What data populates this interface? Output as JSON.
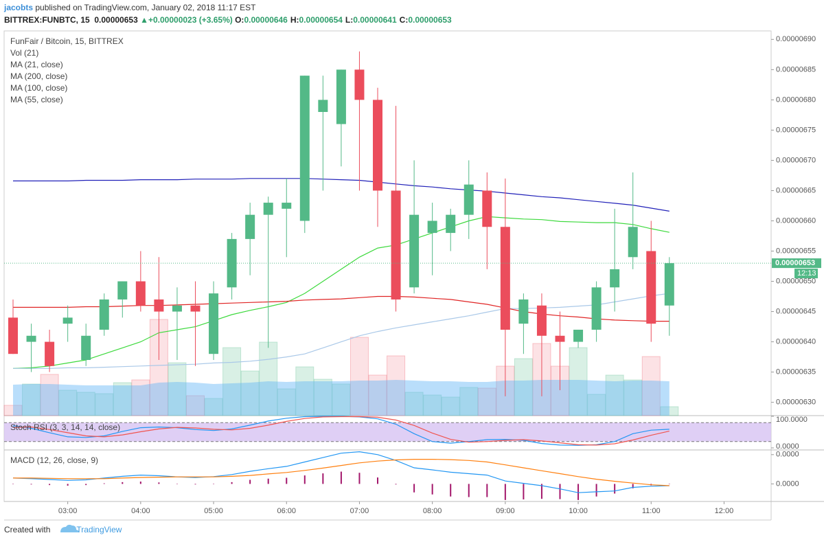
{
  "header": {
    "author": "jacobts",
    "published": "published on TradingView.com, January 02, 2018 11:17 EST",
    "symbol": "BITTREX:FUNBTC, 15",
    "last": "0.00000653",
    "arrow": "▲",
    "change": "+0.00000023 (+3.65%)",
    "ohlc": [
      {
        "key": "O:",
        "value": "0.00000646"
      },
      {
        "key": "H:",
        "value": "0.00000654"
      },
      {
        "key": "L:",
        "value": "0.00000641"
      },
      {
        "key": "C:",
        "value": "0.00000653"
      }
    ]
  },
  "chart_data": {
    "type": "candlestick",
    "title": "FunFair / Bitcoin, 15, BITTREX",
    "categories": [
      null,
      null,
      null,
      "03:00",
      null,
      null,
      null,
      "04:00",
      null,
      null,
      null,
      "05:00",
      null,
      null,
      null,
      "06:00",
      null,
      null,
      null,
      "07:00",
      null,
      null,
      null,
      "08:00",
      null,
      null,
      null,
      "09:00",
      null,
      null,
      null,
      "10:00",
      null,
      null,
      null,
      "11:00",
      null,
      null,
      null,
      "12:00"
    ],
    "open": [
      6.44e-07,
      6.4e-07,
      6.4e-07,
      6.43e-07,
      6.37e-07,
      6.42e-07,
      6.47e-07,
      6.5e-07,
      6.47e-07,
      6.45e-07,
      6.46e-07,
      6.38e-07,
      6.49e-07,
      6.57e-07,
      6.61e-07,
      6.62e-07,
      6.6e-07,
      6.78e-07,
      6.76e-07,
      6.85e-07,
      6.8e-07,
      6.65e-07,
      6.49e-07,
      6.58e-07,
      6.58e-07,
      6.61e-07,
      6.65e-07,
      6.59e-07,
      6.43e-07,
      6.46e-07,
      6.41e-07,
      6.4e-07,
      6.42e-07,
      6.49e-07,
      6.54e-07,
      6.55e-07,
      6.46e-07,
      null,
      null,
      null
    ],
    "high": [
      6.47e-07,
      6.43e-07,
      6.42e-07,
      6.46e-07,
      6.43e-07,
      6.48e-07,
      6.5e-07,
      6.55e-07,
      6.54e-07,
      6.49e-07,
      6.5e-07,
      6.5e-07,
      6.58e-07,
      6.63e-07,
      6.64e-07,
      6.67e-07,
      6.84e-07,
      6.84e-07,
      6.85e-07,
      6.88e-07,
      6.82e-07,
      6.79e-07,
      6.7e-07,
      6.63e-07,
      6.62e-07,
      6.7e-07,
      6.68e-07,
      6.67e-07,
      6.48e-07,
      6.48e-07,
      6.45e-07,
      6.42e-07,
      6.5e-07,
      6.62e-07,
      6.68e-07,
      6.6e-07,
      6.54e-07,
      null,
      null,
      null
    ],
    "low": [
      6.38e-07,
      6.35e-07,
      6.35e-07,
      6.4e-07,
      6.36e-07,
      6.41e-07,
      6.44e-07,
      6.45e-07,
      6.37e-07,
      6.37e-07,
      6.36e-07,
      6.37e-07,
      6.47e-07,
      6.51e-07,
      6.39e-07,
      6.54e-07,
      6.58e-07,
      6.65e-07,
      6.69e-07,
      6.65e-07,
      6.59e-07,
      6.45e-07,
      6.48e-07,
      6.51e-07,
      6.55e-07,
      6.57e-07,
      6.52e-07,
      6.31e-07,
      6.38e-07,
      6.31e-07,
      6.32e-07,
      6.39e-07,
      6.4e-07,
      6.45e-07,
      6.52e-07,
      6.4e-07,
      6.41e-07,
      null,
      null,
      null
    ],
    "close": [
      6.38e-07,
      6.41e-07,
      6.36e-07,
      6.44e-07,
      6.41e-07,
      6.47e-07,
      6.5e-07,
      6.46e-07,
      6.45e-07,
      6.46e-07,
      6.45e-07,
      6.48e-07,
      6.57e-07,
      6.61e-07,
      6.63e-07,
      6.63e-07,
      6.84e-07,
      6.8e-07,
      6.85e-07,
      6.8e-07,
      6.65e-07,
      6.47e-07,
      6.61e-07,
      6.6e-07,
      6.61e-07,
      6.66e-07,
      6.59e-07,
      6.42e-07,
      6.47e-07,
      6.41e-07,
      6.4e-07,
      6.42e-07,
      6.49e-07,
      6.52e-07,
      6.59e-07,
      6.43e-07,
      6.53e-07,
      null,
      null,
      null
    ],
    "up_color": "#53b987",
    "down_color": "#eb4d5c",
    "ylim": [
      6.278e-07,
      6.914e-07
    ],
    "yticks": [
      {
        "value": 6.3e-07,
        "label": "0.00000630"
      },
      {
        "value": 6.35e-07,
        "label": "0.00000635"
      },
      {
        "value": 6.4e-07,
        "label": "0.00000640"
      },
      {
        "value": 6.45e-07,
        "label": "0.00000645"
      },
      {
        "value": 6.5e-07,
        "label": "0.00000650"
      },
      {
        "value": 6.55e-07,
        "label": "0.00000655"
      },
      {
        "value": 6.6e-07,
        "label": "0.00000660"
      },
      {
        "value": 6.65e-07,
        "label": "0.00000665"
      },
      {
        "value": 6.7e-07,
        "label": "0.00000670"
      },
      {
        "value": 6.75e-07,
        "label": "0.00000675"
      },
      {
        "value": 6.8e-07,
        "label": "0.00000680"
      },
      {
        "value": 6.85e-07,
        "label": "0.00000685"
      },
      {
        "value": 6.9e-07,
        "label": "0.00000690"
      }
    ],
    "last_price_label": "0.00000653",
    "countdown": "12:13",
    "volume": {
      "name": "Vol (21)",
      "values": [
        15,
        46,
        60,
        37,
        34,
        32,
        48,
        52,
        140,
        77,
        29,
        25,
        99,
        65,
        107,
        39,
        71,
        53,
        46,
        114,
        59,
        87,
        34,
        30,
        27,
        41,
        40,
        72,
        83,
        105,
        72,
        99,
        31,
        59,
        52,
        86,
        13,
        null,
        null,
        null
      ],
      "ma_values": [
        45,
        46,
        46,
        45,
        44,
        44,
        44,
        44,
        48,
        49,
        48,
        46,
        47,
        48,
        50,
        49,
        50,
        50,
        50,
        51,
        51,
        52,
        51,
        50,
        50,
        49,
        49,
        51,
        51,
        52,
        52,
        52,
        51,
        50,
        51,
        51,
        50,
        null,
        null,
        null
      ]
    },
    "series": [
      {
        "name": "MA (21, close)",
        "color": "#3cd93c",
        "values": [
          6.356e-07,
          6.357e-07,
          6.36e-07,
          6.365e-07,
          6.37e-07,
          6.38e-07,
          6.39e-07,
          6.4e-07,
          6.415e-07,
          6.42e-07,
          6.425e-07,
          6.435e-07,
          6.445e-07,
          6.452e-07,
          6.458e-07,
          6.465e-07,
          6.48e-07,
          6.5e-07,
          6.52e-07,
          6.54e-07,
          6.555e-07,
          6.56e-07,
          6.57e-07,
          6.58e-07,
          6.59e-07,
          6.6e-07,
          6.607e-07,
          6.605e-07,
          6.603e-07,
          6.602e-07,
          6.599e-07,
          6.598e-07,
          6.597e-07,
          6.597e-07,
          6.594e-07,
          6.587e-07,
          6.581e-07,
          null,
          null,
          null
        ]
      },
      {
        "name": "MA (200, close)",
        "color": "#2020b8",
        "values": [
          6.666e-07,
          6.666e-07,
          6.666e-07,
          6.666e-07,
          6.667e-07,
          6.667e-07,
          6.667e-07,
          6.668e-07,
          6.668e-07,
          6.668e-07,
          6.669e-07,
          6.669e-07,
          6.669e-07,
          6.67e-07,
          6.67e-07,
          6.67e-07,
          6.67e-07,
          6.669e-07,
          6.668e-07,
          6.667e-07,
          6.664e-07,
          6.661e-07,
          6.658e-07,
          6.656e-07,
          6.653e-07,
          6.651e-07,
          6.649e-07,
          6.646e-07,
          6.643e-07,
          6.64e-07,
          6.638e-07,
          6.635e-07,
          6.632e-07,
          6.629e-07,
          6.626e-07,
          6.621e-07,
          6.616e-07,
          null,
          null,
          null
        ]
      },
      {
        "name": "MA (100, close)",
        "color": "#a9c8e8",
        "values": [
          6.356e-07,
          6.356e-07,
          6.356e-07,
          6.357e-07,
          6.357e-07,
          6.358e-07,
          6.359e-07,
          6.36e-07,
          6.361e-07,
          6.362e-07,
          6.363e-07,
          6.365e-07,
          6.366e-07,
          6.368e-07,
          6.371e-07,
          6.375e-07,
          6.38e-07,
          6.39e-07,
          6.4e-07,
          6.41e-07,
          6.417e-07,
          6.423e-07,
          6.428e-07,
          6.433e-07,
          6.438e-07,
          6.443e-07,
          6.449e-07,
          6.455e-07,
          6.455e-07,
          6.456e-07,
          6.457e-07,
          6.459e-07,
          6.461e-07,
          6.466e-07,
          6.471e-07,
          6.476e-07,
          6.48e-07,
          null,
          null,
          null
        ]
      },
      {
        "name": "MA (55, close)",
        "color": "#e02424",
        "values": [
          6.457e-07,
          6.457e-07,
          6.457e-07,
          6.457e-07,
          6.458e-07,
          6.458e-07,
          6.459e-07,
          6.46e-07,
          6.46e-07,
          6.461e-07,
          6.462e-07,
          6.463e-07,
          6.464e-07,
          6.465e-07,
          6.466e-07,
          6.467e-07,
          6.469e-07,
          6.47e-07,
          6.471e-07,
          6.473e-07,
          6.475e-07,
          6.475e-07,
          6.474e-07,
          6.472e-07,
          6.47e-07,
          6.466e-07,
          6.462e-07,
          6.456e-07,
          6.45e-07,
          6.446e-07,
          6.443e-07,
          6.441e-07,
          6.438e-07,
          6.436e-07,
          6.435e-07,
          6.434e-07,
          6.434e-07,
          null,
          null,
          null
        ]
      }
    ],
    "stoch_rsi": {
      "title": "Stoch RSI (3, 3, 14, 14, close)",
      "ylim": [
        0,
        100
      ],
      "yticks": [
        {
          "value": 100,
          "label": "100.0000"
        },
        {
          "value": 0,
          "label": "0.0000"
        }
      ],
      "band": [
        20,
        80
      ],
      "series": [
        {
          "color": "#2196f3",
          "values": [
            70,
            62,
            48,
            35,
            33,
            38,
            52,
            64,
            66,
            64,
            58,
            55,
            60,
            72,
            85,
            94,
            99,
            100,
            100,
            98,
            92,
            75,
            45,
            20,
            15,
            20,
            26,
            27,
            24,
            14,
            9,
            8,
            10,
            20,
            45,
            56,
            59,
            null,
            null,
            null
          ]
        },
        {
          "color": "#f0544f",
          "values": [
            65,
            66,
            58,
            48,
            38,
            35,
            41,
            51,
            60,
            65,
            63,
            59,
            57,
            62,
            72,
            84,
            93,
            98,
            99,
            99,
            97,
            88,
            71,
            47,
            27,
            18,
            20,
            24,
            26,
            22,
            16,
            10,
            9,
            13,
            25,
            40,
            53,
            null,
            null,
            null
          ]
        }
      ]
    },
    "macd": {
      "title": "MACD (12, 26, close, 9)",
      "ylim": [
        -6e-08,
        1.16e-07
      ],
      "yticks": [
        {
          "value": 1e-07,
          "label": "0.0000"
        },
        {
          "value": 0,
          "label": "0.0000"
        }
      ],
      "series": [
        {
          "color": "#2196f3",
          "values": [
            2e-08,
            1.8e-08,
            1.5e-08,
            1.2e-08,
            1.4e-08,
            2e-08,
            2.6e-08,
            3e-08,
            2.8e-08,
            2.4e-08,
            2.2e-08,
            2.5e-08,
            3.2e-08,
            4.3e-08,
            5.2e-08,
            6e-08,
            7.5e-08,
            9e-08,
            1.05e-07,
            1.1e-07,
            1e-07,
            8e-08,
            5.5e-08,
            4.8e-08,
            4e-08,
            3.5e-08,
            3e-08,
            1e-08,
            2e-09,
            -6e-09,
            -1.7e-08,
            -3e-08,
            -2.7e-08,
            -2.4e-08,
            -1.2e-08,
            -8e-09,
            -6e-09,
            null,
            null,
            null
          ]
        },
        {
          "color": "#ff7f0e",
          "values": [
            2e-08,
            2e-08,
            1.9e-08,
            1.8e-08,
            1.8e-08,
            1.8e-08,
            2e-08,
            2.2e-08,
            2.3e-08,
            2.4e-08,
            2.4e-08,
            2.4e-08,
            2.6e-08,
            2.9e-08,
            3.4e-08,
            3.9e-08,
            4.6e-08,
            5.4e-08,
            6.3e-08,
            7.2e-08,
            7.8e-08,
            8.2e-08,
            8.4e-08,
            8.4e-08,
            8.3e-08,
            8e-08,
            7.5e-08,
            6.5e-08,
            5.5e-08,
            4.5e-08,
            3.5e-08,
            2.5e-08,
            1.6e-08,
            9e-09,
            3e-09,
            -3e-09,
            -6e-09,
            null,
            null,
            null
          ]
        }
      ],
      "histogram": {
        "color": "#a3176b",
        "values": [
          0,
          -2e-09,
          -4e-09,
          -6e-09,
          -4e-09,
          2e-09,
          6e-09,
          8e-09,
          5e-09,
          0,
          -2e-09,
          1e-09,
          6e-09,
          1.4e-08,
          1.8e-08,
          2.1e-08,
          2.9e-08,
          3.6e-08,
          4.2e-08,
          3.8e-08,
          2.2e-08,
          -2e-09,
          -2.9e-08,
          -3.6e-08,
          -4.3e-08,
          -4.5e-08,
          -4.5e-08,
          -5.5e-08,
          -5.3e-08,
          -5.1e-08,
          -5.2e-08,
          -5.5e-08,
          -4.3e-08,
          -3.3e-08,
          -1.5e-08,
          -5e-09,
          0,
          null,
          null,
          null
        ]
      }
    }
  },
  "footer": {
    "created": "Created with",
    "brand": "TradingView"
  }
}
